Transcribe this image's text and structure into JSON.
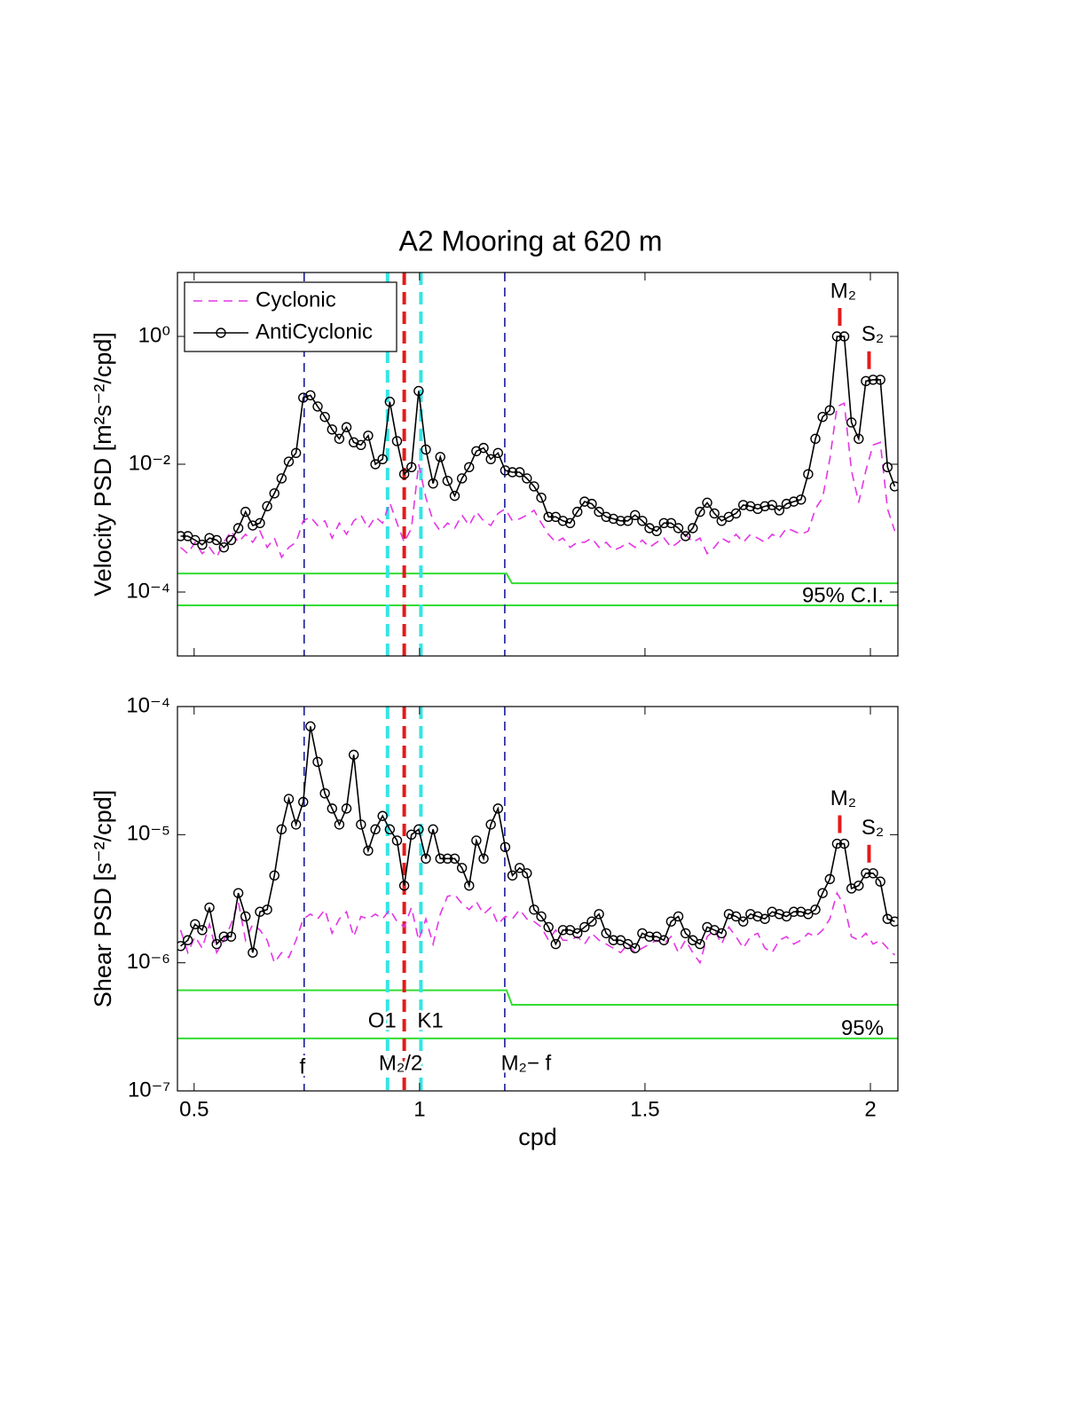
{
  "chart_data": [
    {
      "type": "line",
      "title": "A2 Mooring at 620 m",
      "ylabel": "Velocity PSD [m²s⁻²/cpd]",
      "yscale": "log",
      "xlim": [
        0.463,
        2.061
      ],
      "ylim": [
        1e-05,
        10
      ],
      "xticks": [
        0.5,
        1,
        1.5,
        2
      ],
      "yticks": [
        {
          "value": 0.0001,
          "label": "10⁻⁴"
        },
        {
          "value": 0.01,
          "label": "10⁻²"
        },
        {
          "value": 1,
          "label": "10⁰"
        }
      ],
      "legend": "upper left",
      "x": [
        0.47,
        0.486,
        0.502,
        0.518,
        0.534,
        0.55,
        0.566,
        0.582,
        0.598,
        0.614,
        0.63,
        0.646,
        0.662,
        0.678,
        0.694,
        0.71,
        0.726,
        0.742,
        0.758,
        0.774,
        0.79,
        0.806,
        0.822,
        0.838,
        0.854,
        0.87,
        0.886,
        0.902,
        0.918,
        0.934,
        0.95,
        0.966,
        0.982,
        0.998,
        1.014,
        1.03,
        1.046,
        1.062,
        1.078,
        1.094,
        1.11,
        1.126,
        1.142,
        1.158,
        1.174,
        1.19,
        1.206,
        1.222,
        1.238,
        1.254,
        1.27,
        1.286,
        1.302,
        1.318,
        1.334,
        1.35,
        1.366,
        1.382,
        1.398,
        1.414,
        1.43,
        1.446,
        1.462,
        1.478,
        1.494,
        1.51,
        1.526,
        1.542,
        1.558,
        1.574,
        1.59,
        1.606,
        1.622,
        1.638,
        1.654,
        1.67,
        1.686,
        1.702,
        1.718,
        1.734,
        1.75,
        1.766,
        1.782,
        1.798,
        1.814,
        1.83,
        1.846,
        1.862,
        1.878,
        1.894,
        1.91,
        1.926,
        1.942,
        1.958,
        1.974,
        1.99,
        2.006,
        2.022,
        2.038,
        2.054
      ],
      "series": [
        {
          "name": "Cyclonic",
          "color": "#e535e5",
          "linestyle": "dashed",
          "values": [
            0.0005,
            0.0004,
            0.0006,
            0.0004,
            0.0005,
            0.00035,
            0.0006,
            0.0009,
            0.0006,
            0.0008,
            0.0006,
            0.0009,
            0.0005,
            0.0007,
            0.00035,
            0.0005,
            0.0006,
            0.0013,
            0.0015,
            0.0011,
            0.0013,
            0.0007,
            0.0012,
            0.0008,
            0.0013,
            0.0016,
            0.001,
            0.0015,
            0.0012,
            0.0025,
            0.0012,
            0.0006,
            0.001,
            0.01,
            0.003,
            0.0013,
            0.0009,
            0.0012,
            0.001,
            0.0016,
            0.0011,
            0.0018,
            0.0013,
            0.0011,
            0.0017,
            0.002,
            0.0013,
            0.0014,
            0.0016,
            0.0019,
            0.0012,
            0.0008,
            0.0006,
            0.0007,
            0.0005,
            0.0006,
            0.0006,
            0.0007,
            0.0005,
            0.0006,
            0.00045,
            0.0005,
            0.0006,
            0.0005,
            0.00065,
            0.0005,
            0.0006,
            0.0007,
            0.0005,
            0.0006,
            0.0008,
            0.0006,
            0.0007,
            0.0004,
            0.0005,
            0.0007,
            0.0006,
            0.0008,
            0.0006,
            0.0008,
            0.0007,
            0.0006,
            0.0008,
            0.0007,
            0.001,
            0.0009,
            0.0008,
            0.0009,
            0.002,
            0.003,
            0.012,
            0.08,
            0.09,
            0.008,
            0.0025,
            0.008,
            0.02,
            0.022,
            0.002,
            0.0009
          ]
        },
        {
          "name": "AntiCyclonic",
          "color": "#000000",
          "linestyle": "solid",
          "marker": "o",
          "values": [
            0.00075,
            0.00075,
            0.00065,
            0.00055,
            0.0007,
            0.00065,
            0.0005,
            0.00065,
            0.001,
            0.0018,
            0.0011,
            0.0012,
            0.0022,
            0.0035,
            0.006,
            0.011,
            0.015,
            0.11,
            0.12,
            0.08,
            0.055,
            0.035,
            0.025,
            0.038,
            0.022,
            0.02,
            0.028,
            0.01,
            0.012,
            0.095,
            0.023,
            0.007,
            0.009,
            0.14,
            0.017,
            0.005,
            0.013,
            0.0055,
            0.0032,
            0.006,
            0.009,
            0.016,
            0.018,
            0.012,
            0.015,
            0.008,
            0.0075,
            0.0075,
            0.006,
            0.0045,
            0.003,
            0.0015,
            0.0015,
            0.0013,
            0.0012,
            0.0018,
            0.0026,
            0.0024,
            0.0018,
            0.0015,
            0.0014,
            0.0013,
            0.0013,
            0.0016,
            0.0013,
            0.001,
            0.0009,
            0.0012,
            0.0012,
            0.001,
            0.00075,
            0.001,
            0.0018,
            0.0025,
            0.0017,
            0.0013,
            0.0015,
            0.0017,
            0.0023,
            0.0022,
            0.002,
            0.0022,
            0.0023,
            0.0019,
            0.0024,
            0.0026,
            0.0028,
            0.007,
            0.025,
            0.055,
            0.07,
            1.0,
            1.0,
            0.045,
            0.025,
            0.2,
            0.21,
            0.21,
            0.009,
            0.0045
          ]
        }
      ],
      "ci_color": "#33dd33",
      "ci_lines": [
        {
          "x": [
            0.463,
            1.193,
            1.205,
            2.061
          ],
          "values": [
            0.000195,
            0.000195,
            0.000137,
            0.000137
          ]
        },
        {
          "x": [
            0.463,
            2.061
          ],
          "values": [
            6.2e-05,
            6.2e-05
          ]
        }
      ],
      "ci_label": "95% C.I.",
      "vlines": [
        {
          "x": 0.744,
          "color": "#1a1a9c",
          "linestyle": "dashed"
        },
        {
          "x": 0.929,
          "color": "#33e5e5",
          "linestyle": "thick-dashed"
        },
        {
          "x": 0.966,
          "color": "#e41a1a",
          "linestyle": "thick-dashed"
        },
        {
          "x": 1.003,
          "color": "#33e5e5",
          "linestyle": "thick-dashed"
        },
        {
          "x": 1.189,
          "color": "#1a1a9c",
          "linestyle": "dashed"
        }
      ],
      "tidal": [
        {
          "x": 1.932,
          "label": "M₂",
          "color": "#e41a1a"
        },
        {
          "x": 1.997,
          "label": "S₂",
          "color": "#e41a1a"
        }
      ]
    },
    {
      "type": "line",
      "ylabel": "Shear PSD [s⁻²/cpd]",
      "xlabel": "cpd",
      "yscale": "log",
      "xlim": [
        0.463,
        2.061
      ],
      "ylim": [
        1e-07,
        0.0001
      ],
      "xticks": [
        0.5,
        1,
        1.5,
        2
      ],
      "yticks": [
        {
          "value": 1e-07,
          "label": "10⁻⁷"
        },
        {
          "value": 1e-06,
          "label": "10⁻⁶"
        },
        {
          "value": 1e-05,
          "label": "10⁻⁵"
        },
        {
          "value": 0.0001,
          "label": "10⁻⁴"
        }
      ],
      "x": [
        0.47,
        0.486,
        0.502,
        0.518,
        0.534,
        0.55,
        0.566,
        0.582,
        0.598,
        0.614,
        0.63,
        0.646,
        0.662,
        0.678,
        0.694,
        0.71,
        0.726,
        0.742,
        0.758,
        0.774,
        0.79,
        0.806,
        0.822,
        0.838,
        0.854,
        0.87,
        0.886,
        0.902,
        0.918,
        0.934,
        0.95,
        0.966,
        0.982,
        0.998,
        1.014,
        1.03,
        1.046,
        1.062,
        1.078,
        1.094,
        1.11,
        1.126,
        1.142,
        1.158,
        1.174,
        1.19,
        1.206,
        1.222,
        1.238,
        1.254,
        1.27,
        1.286,
        1.302,
        1.318,
        1.334,
        1.35,
        1.366,
        1.382,
        1.398,
        1.414,
        1.43,
        1.446,
        1.462,
        1.478,
        1.494,
        1.51,
        1.526,
        1.542,
        1.558,
        1.574,
        1.59,
        1.606,
        1.622,
        1.638,
        1.654,
        1.67,
        1.686,
        1.702,
        1.718,
        1.734,
        1.75,
        1.766,
        1.782,
        1.798,
        1.814,
        1.83,
        1.846,
        1.862,
        1.878,
        1.894,
        1.91,
        1.926,
        1.942,
        1.958,
        1.974,
        1.99,
        2.006,
        2.022,
        2.038,
        2.054
      ],
      "series": [
        {
          "color": "#e535e5",
          "linestyle": "dashed",
          "values": [
            1.8e-06,
            1.2e-06,
            1.6e-06,
            1.3e-06,
            2e-06,
            1.2e-06,
            1.5e-06,
            2e-06,
            3e-06,
            1.5e-06,
            2e-06,
            1.8e-06,
            1.5e-06,
            1e-06,
            1.2e-06,
            1.1e-06,
            1.5e-06,
            2.2e-06,
            2.4e-06,
            2.2e-06,
            2.6e-06,
            1.7e-06,
            2.2e-06,
            2.5e-06,
            1.6e-06,
            2.3e-06,
            2.2e-06,
            2.4e-06,
            2.2e-06,
            2.6e-06,
            2.1e-06,
            1.9e-06,
            2.7e-06,
            1.5e-06,
            2.2e-06,
            1.4e-06,
            2.4e-06,
            3.3e-06,
            3.4e-06,
            2.9e-06,
            2.6e-06,
            3e-06,
            2.4e-06,
            2.7e-06,
            2e-06,
            2.3e-06,
            2.2e-06,
            2.6e-06,
            2.2e-06,
            2.1e-06,
            1.9e-06,
            1.5e-06,
            1.8e-06,
            1.5e-06,
            1.5e-06,
            1.6e-06,
            1.4e-06,
            1.7e-06,
            1.5e-06,
            1.4e-06,
            1.3e-06,
            1.2e-06,
            1.4e-06,
            1.2e-06,
            1.3e-06,
            1.4e-06,
            1.5e-06,
            1.4e-06,
            1.6e-06,
            1.2e-06,
            1.5e-06,
            1.2e-06,
            1e-06,
            1.6e-06,
            1.8e-06,
            1.4e-06,
            1.9e-06,
            1.6e-06,
            1.3e-06,
            1.6e-06,
            1.7e-06,
            1.3e-06,
            1.2e-06,
            1.5e-06,
            1.6e-06,
            1.4e-06,
            1.5e-06,
            1.7e-06,
            1.6e-06,
            1.8e-06,
            2.2e-06,
            3.5e-06,
            2.8e-06,
            1.6e-06,
            1.5e-06,
            1.7e-06,
            1.4e-06,
            1.5e-06,
            1.3e-06,
            1.15e-06
          ]
        },
        {
          "color": "#000000",
          "linestyle": "solid",
          "marker": "o",
          "values": [
            1.35e-06,
            1.5e-06,
            2e-06,
            1.8e-06,
            2.7e-06,
            1.4e-06,
            1.6e-06,
            1.6e-06,
            3.5e-06,
            2.3e-06,
            1.2e-06,
            2.5e-06,
            2.6e-06,
            4.8e-06,
            1.1e-05,
            1.9e-05,
            1.2e-05,
            1.8e-05,
            7e-05,
            3.7e-05,
            2.1e-05,
            1.6e-05,
            1.2e-05,
            1.6e-05,
            4.2e-05,
            1.2e-05,
            7.5e-06,
            1.1e-05,
            1.4e-05,
            1.1e-05,
            9e-06,
            4e-06,
            1e-05,
            1.1e-05,
            6.5e-06,
            1.1e-05,
            6.5e-06,
            6.5e-06,
            6.5e-06,
            5.5e-06,
            4e-06,
            9e-06,
            6.5e-06,
            1.2e-05,
            1.6e-05,
            8e-06,
            4.8e-06,
            5.5e-06,
            5e-06,
            2.6e-06,
            2.3e-06,
            1.9e-06,
            1.4e-06,
            1.8e-06,
            1.8e-06,
            1.7e-06,
            1.9e-06,
            2.1e-06,
            2.4e-06,
            1.7e-06,
            1.5e-06,
            1.5e-06,
            1.4e-06,
            1.3e-06,
            1.7e-06,
            1.6e-06,
            1.6e-06,
            1.5e-06,
            2.1e-06,
            2.3e-06,
            1.7e-06,
            1.5e-06,
            1.4e-06,
            1.9e-06,
            1.8e-06,
            1.7e-06,
            2.4e-06,
            2.3e-06,
            2.1e-06,
            2.4e-06,
            2.3e-06,
            2.2e-06,
            2.5e-06,
            2.4e-06,
            2.3e-06,
            2.5e-06,
            2.5e-06,
            2.4e-06,
            2.6e-06,
            3.5e-06,
            4.5e-06,
            8.5e-06,
            8.5e-06,
            3.8e-06,
            4e-06,
            5e-06,
            5e-06,
            4.3e-06,
            2.2e-06,
            2.1e-06
          ]
        }
      ],
      "ci_color": "#33dd33",
      "ci_lines": [
        {
          "x": [
            0.463,
            1.193,
            1.205,
            2.061
          ],
          "values": [
            6.1e-07,
            6.1e-07,
            4.7e-07,
            4.7e-07
          ]
        },
        {
          "x": [
            0.463,
            2.061
          ],
          "values": [
            2.57e-07,
            2.57e-07
          ]
        }
      ],
      "ci_label": "95%",
      "vlines": [
        {
          "x": 0.744,
          "color": "#1a1a9c",
          "linestyle": "dashed",
          "label": "f"
        },
        {
          "x": 0.929,
          "color": "#33e5e5",
          "linestyle": "thick-dashed",
          "label": "O1"
        },
        {
          "x": 0.966,
          "color": "#e41a1a",
          "linestyle": "thick-dashed",
          "label": "M₂/2"
        },
        {
          "x": 1.003,
          "color": "#33e5e5",
          "linestyle": "thick-dashed",
          "label": "K1"
        },
        {
          "x": 1.189,
          "color": "#1a1a9c",
          "linestyle": "dashed",
          "label": "M₂− f"
        }
      ],
      "tidal": [
        {
          "x": 1.932,
          "label": "M₂",
          "color": "#e41a1a"
        },
        {
          "x": 1.997,
          "label": "S₂",
          "color": "#e41a1a"
        }
      ]
    }
  ]
}
